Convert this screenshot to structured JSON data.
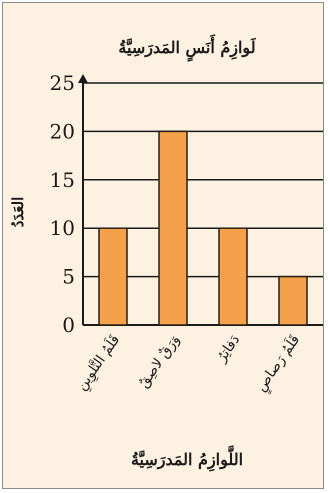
{
  "chart_data": {
    "type": "bar",
    "title": "لَوازِمُ أَنَسٍ المَدرَسِيَّةُ",
    "xlabel": "اللَّوازِمُ المَدرَسِيَّةُ",
    "ylabel": "العَدَدُ",
    "categories": [
      "قَلَمُ التَّلوِينِ",
      "وَرَقٌ لاصِقٌ",
      "دَفاتِرُ",
      "قَلَمُ رَصاصٍ"
    ],
    "values": [
      10,
      20,
      10,
      5
    ],
    "yticks": [
      "0",
      "5",
      "10",
      "15",
      "20",
      "25"
    ],
    "ylim": [
      0,
      25
    ],
    "grid": true
  },
  "colors": {
    "background": "#fdf2e1",
    "bar_fill": "#f5a04a",
    "bar_stroke": "#2b1d12",
    "axis": "#1a1a1a",
    "text": "#1a1a1a"
  }
}
